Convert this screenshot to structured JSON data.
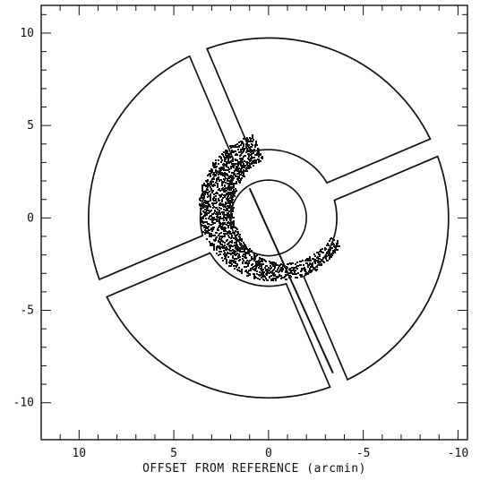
{
  "chart_data": {
    "type": "scatter",
    "title": "",
    "xlabel": "OFFSET FROM REFERENCE (arcmin)",
    "ylabel": "",
    "xlim": [
      12,
      -10.5
    ],
    "ylim": [
      -12,
      11.5
    ],
    "x_ticks": [
      10,
      5,
      0,
      -5,
      -10
    ],
    "x_tick_labels": [
      "10",
      "5",
      "0",
      "-5",
      "-10"
    ],
    "y_ticks": [
      10,
      5,
      0,
      -5,
      -10
    ],
    "y_tick_labels": [
      "10",
      "5",
      "0",
      "-5",
      "-10"
    ],
    "grid": false,
    "legend": "none",
    "colors": {
      "ink": "#111111",
      "background": "#ffffff"
    },
    "detector_outline": {
      "inner_ring_radius_arcmin": 3.6,
      "outer_ring_radius_arcmin": 9.5,
      "central_circle_radius_arcmin": 2.0,
      "support_rib_angles_deg": [
        23,
        113,
        203,
        293
      ],
      "support_rib_width_arcmin": 1.0
    },
    "slit_line": {
      "x": [
        1.0,
        -3.4
      ],
      "y": [
        1.6,
        -8.4
      ]
    },
    "emission_arc": {
      "center_x": -0.6,
      "center_y": 0.6,
      "radius_arcmin": 3.4,
      "start_angle_deg": 110,
      "end_angle_deg": 330
    }
  }
}
